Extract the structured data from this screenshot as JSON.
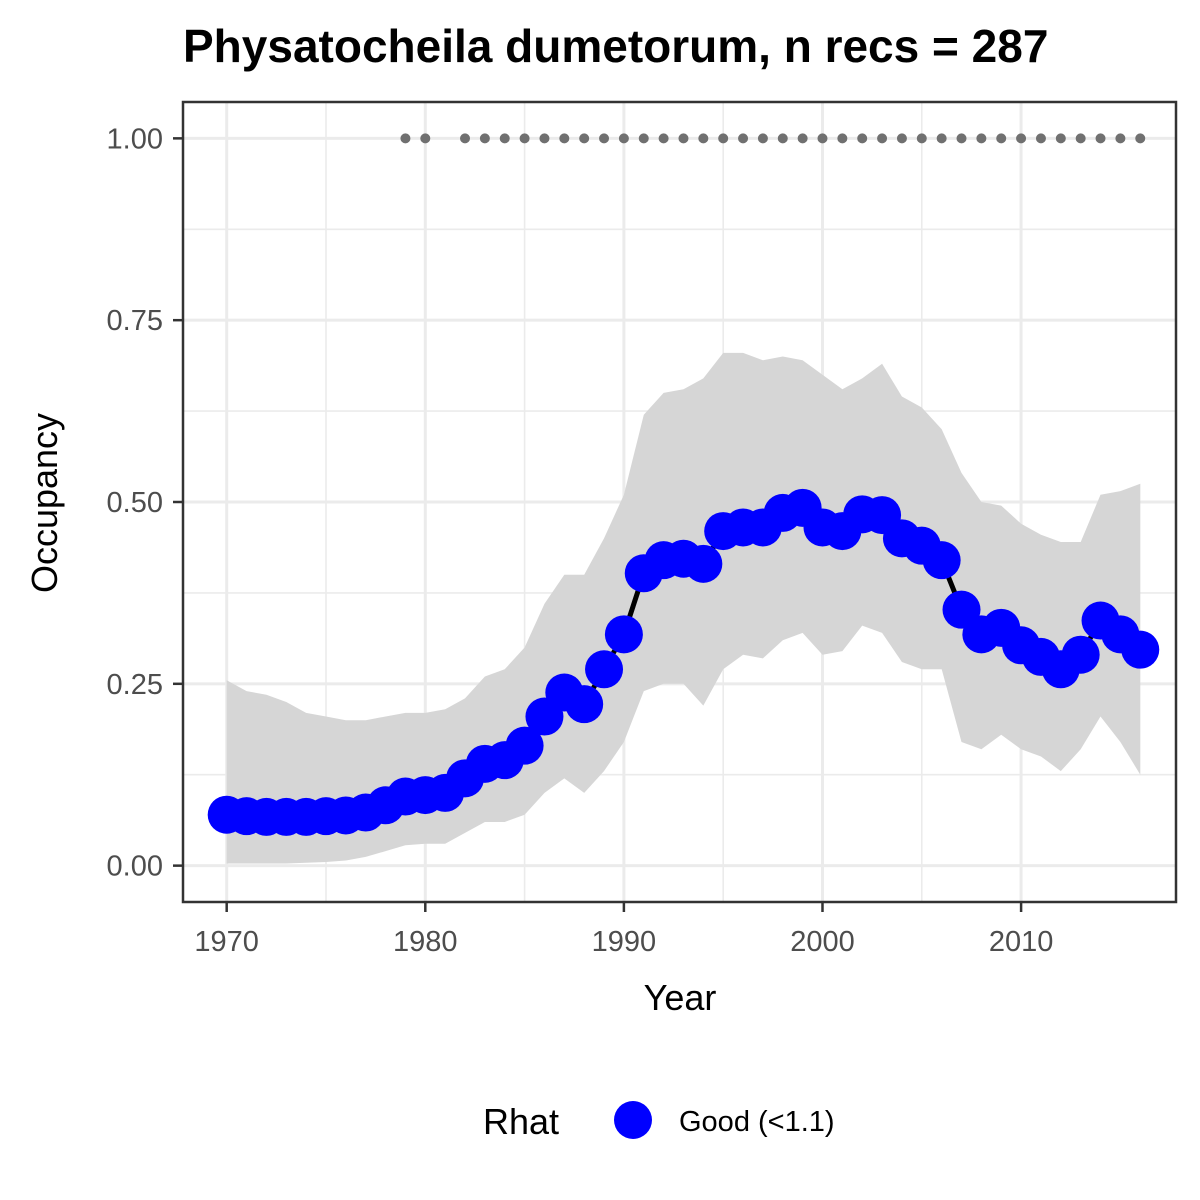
{
  "chart_data": {
    "type": "line",
    "title": "Physatocheila dumetorum, n recs = 287",
    "xlabel": "Year",
    "ylabel": "Occupancy",
    "xlim": [
      1967.8,
      2017.8
    ],
    "ylim": [
      -0.05,
      1.05
    ],
    "x_ticks": [
      "1970",
      "1980",
      "1990",
      "2000",
      "2010"
    ],
    "y_ticks": [
      "0.00",
      "0.25",
      "0.50",
      "0.75",
      "1.00"
    ],
    "grid": true,
    "legend_position": "bottom",
    "legend": {
      "title": "Rhat",
      "label": "Good (<1.1)"
    },
    "colors": {
      "points": "#0000ff",
      "line": "#000000",
      "ribbon": "#d6d6d6",
      "records": "#707070",
      "grid": "#ebebeb",
      "panel_border": "#333333"
    },
    "x": [
      1970,
      1971,
      1972,
      1973,
      1974,
      1975,
      1976,
      1977,
      1978,
      1979,
      1980,
      1981,
      1982,
      1983,
      1984,
      1985,
      1986,
      1987,
      1988,
      1989,
      1990,
      1991,
      1992,
      1993,
      1994,
      1995,
      1996,
      1997,
      1998,
      1999,
      2000,
      2001,
      2002,
      2003,
      2004,
      2005,
      2006,
      2007,
      2008,
      2009,
      2010,
      2011,
      2012,
      2013,
      2014,
      2015,
      2016
    ],
    "series": [
      {
        "values": [
          0.07,
          0.068,
          0.067,
          0.067,
          0.067,
          0.068,
          0.069,
          0.073,
          0.083,
          0.095,
          0.097,
          0.1,
          0.12,
          0.14,
          0.145,
          0.165,
          0.205,
          0.238,
          0.222,
          0.27,
          0.318,
          0.402,
          0.42,
          0.422,
          0.415,
          0.46,
          0.465,
          0.465,
          0.485,
          0.492,
          0.465,
          0.46,
          0.483,
          0.482,
          0.45,
          0.44,
          0.42,
          0.352,
          0.318,
          0.327,
          0.303,
          0.287,
          0.27,
          0.29,
          0.337,
          0.318,
          0.297
        ],
        "lower": [
          0.003,
          0.003,
          0.003,
          0.003,
          0.004,
          0.005,
          0.007,
          0.012,
          0.02,
          0.028,
          0.03,
          0.03,
          0.045,
          0.06,
          0.06,
          0.07,
          0.1,
          0.12,
          0.1,
          0.13,
          0.17,
          0.24,
          0.25,
          0.25,
          0.22,
          0.27,
          0.29,
          0.285,
          0.31,
          0.32,
          0.29,
          0.295,
          0.33,
          0.32,
          0.28,
          0.27,
          0.27,
          0.17,
          0.16,
          0.18,
          0.16,
          0.15,
          0.13,
          0.16,
          0.205,
          0.17,
          0.125
        ],
        "upper": [
          0.255,
          0.24,
          0.235,
          0.225,
          0.21,
          0.205,
          0.2,
          0.2,
          0.205,
          0.21,
          0.21,
          0.215,
          0.23,
          0.26,
          0.27,
          0.3,
          0.36,
          0.4,
          0.4,
          0.45,
          0.51,
          0.62,
          0.65,
          0.655,
          0.67,
          0.705,
          0.705,
          0.695,
          0.7,
          0.695,
          0.675,
          0.655,
          0.67,
          0.69,
          0.645,
          0.63,
          0.6,
          0.54,
          0.5,
          0.495,
          0.47,
          0.455,
          0.445,
          0.445,
          0.51,
          0.515,
          0.525
        ]
      }
    ],
    "record_years": [
      1979,
      1980,
      1982,
      1983,
      1984,
      1985,
      1986,
      1987,
      1988,
      1989,
      1990,
      1991,
      1992,
      1993,
      1994,
      1995,
      1996,
      1997,
      1998,
      1999,
      2000,
      2001,
      2002,
      2003,
      2004,
      2005,
      2006,
      2007,
      2008,
      2009,
      2010,
      2011,
      2012,
      2013,
      2014,
      2015,
      2016
    ],
    "record_y": 1.0
  }
}
